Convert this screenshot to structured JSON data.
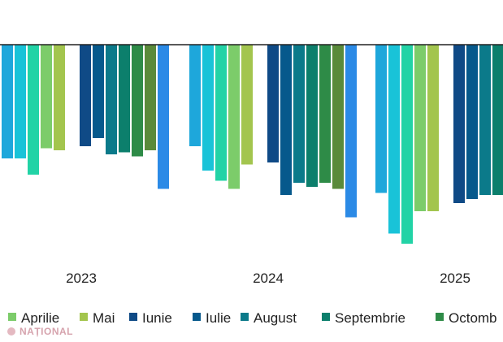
{
  "chart_data": {
    "type": "bar",
    "categories": [
      "2023",
      "2024",
      "2025"
    ],
    "series": [
      {
        "color": "#1ea7db",
        "values": [
          -11.2,
          -10.0,
          -14.6
        ]
      },
      {
        "color": "#19c3d8",
        "values": [
          -11.2,
          -12.4,
          -18.6
        ]
      },
      {
        "color": "#22d3a6",
        "values": [
          -12.8,
          -13.4,
          -19.6
        ]
      },
      {
        "color": "#7ccc6a",
        "values": [
          -10.2,
          -14.2,
          -16.4
        ]
      },
      {
        "name": "Aprilie",
        "color": "#a3c54e",
        "values": [
          -10.4,
          -11.8,
          -16.4
        ]
      },
      {
        "name": "Mai",
        "color": "#9ec047",
        "values": [
          null,
          null,
          null
        ]
      },
      {
        "name": "Iunie",
        "color": "#0f4a86",
        "values": [
          -10.0,
          -11.6,
          -15.6
        ]
      },
      {
        "name": "Iulie",
        "color": "#06598c",
        "values": [
          -9.2,
          -14.8,
          -15.2
        ]
      },
      {
        "name": "August",
        "color": "#0b7a8a",
        "values": [
          -10.8,
          -13.6,
          -14.8
        ]
      },
      {
        "name": "Septembrie",
        "color": "#0c7f6c",
        "values": [
          -10.6,
          -14.0,
          -14.8
        ]
      },
      {
        "color": "#2e8b47",
        "values": [
          -11.0,
          -13.6,
          -15.4
        ]
      },
      {
        "name": "Octombrie",
        "color": "#5a8a3a",
        "values": [
          -10.4,
          -14.2,
          -15.4
        ]
      },
      {
        "color": "#2b8ae6",
        "values": [
          -14.2,
          -17.0,
          null
        ]
      }
    ],
    "ylim": [
      -25,
      0
    ],
    "grid": false,
    "legend": {
      "placement": "bottom",
      "entries": [
        {
          "label": "Aprilie",
          "color": "#7ccc6a"
        },
        {
          "label": "Mai",
          "color": "#a3c54e"
        },
        {
          "label": "Iunie",
          "color": "#0f4a86"
        },
        {
          "label": "Iulie",
          "color": "#06598c"
        },
        {
          "label": "August",
          "color": "#0b7a8a"
        },
        {
          "label": "Septembrie",
          "color": "#0c7f6c"
        },
        {
          "label": "Octomb",
          "color": "#2e8b47"
        }
      ]
    }
  },
  "watermark": {
    "text": "NAȚIONAL",
    "color": "#d6a3ad"
  }
}
